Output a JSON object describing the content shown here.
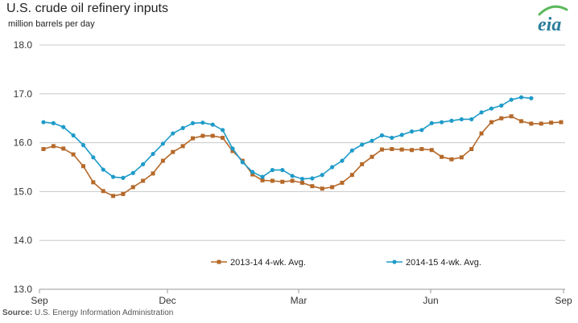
{
  "header": {
    "title": "U.S. crude oil refinery inputs",
    "subtitle": "million barrels per day"
  },
  "footer": {
    "source_label": "Source:",
    "source_text": "U.S. Energy Information Administration"
  },
  "logo": {
    "text": "eia",
    "color": "#2a7d9c",
    "arc_color": "#5cb85c"
  },
  "chart_data": {
    "type": "line",
    "ylim": [
      13.0,
      18.0
    ],
    "yticks": [
      "13.0",
      "14.0",
      "15.0",
      "16.0",
      "17.0",
      "18.0"
    ],
    "xticks": [
      "Sep",
      "Dec",
      "Mar",
      "Jun",
      "Sep"
    ],
    "grid": true,
    "legend": "bottom",
    "series": [
      {
        "name": "2013-14  4-wk. Avg.",
        "color": "#b5692a",
        "marker": "square",
        "values": [
          15.87,
          15.93,
          15.88,
          15.76,
          15.52,
          15.19,
          15.01,
          14.91,
          14.95,
          15.09,
          15.22,
          15.37,
          15.63,
          15.81,
          15.93,
          16.09,
          16.14,
          16.14,
          16.1,
          15.83,
          15.63,
          15.35,
          15.23,
          15.22,
          15.2,
          15.22,
          15.18,
          15.11,
          15.06,
          15.09,
          15.18,
          15.34,
          15.56,
          15.71,
          15.86,
          15.87,
          15.86,
          15.85,
          15.87,
          15.85,
          15.71,
          15.66,
          15.7,
          15.87,
          16.19,
          16.42,
          16.5,
          16.54,
          16.44,
          16.39,
          16.39,
          16.41,
          16.42
        ]
      },
      {
        "name": "2014-15  4-wk. Avg.",
        "color": "#1e9bc9",
        "marker": "circle",
        "values": [
          16.42,
          16.4,
          16.32,
          16.15,
          15.95,
          15.7,
          15.45,
          15.3,
          15.28,
          15.38,
          15.56,
          15.77,
          15.98,
          16.19,
          16.3,
          16.4,
          16.41,
          16.37,
          16.26,
          15.88,
          15.6,
          15.4,
          15.3,
          15.44,
          15.44,
          15.32,
          15.26,
          15.27,
          15.34,
          15.5,
          15.63,
          15.84,
          15.96,
          16.04,
          16.15,
          16.1,
          16.16,
          16.23,
          16.26,
          16.4,
          16.42,
          16.45,
          16.48,
          16.48,
          16.62,
          16.7,
          16.76,
          16.88,
          16.93,
          16.91
        ]
      }
    ]
  }
}
